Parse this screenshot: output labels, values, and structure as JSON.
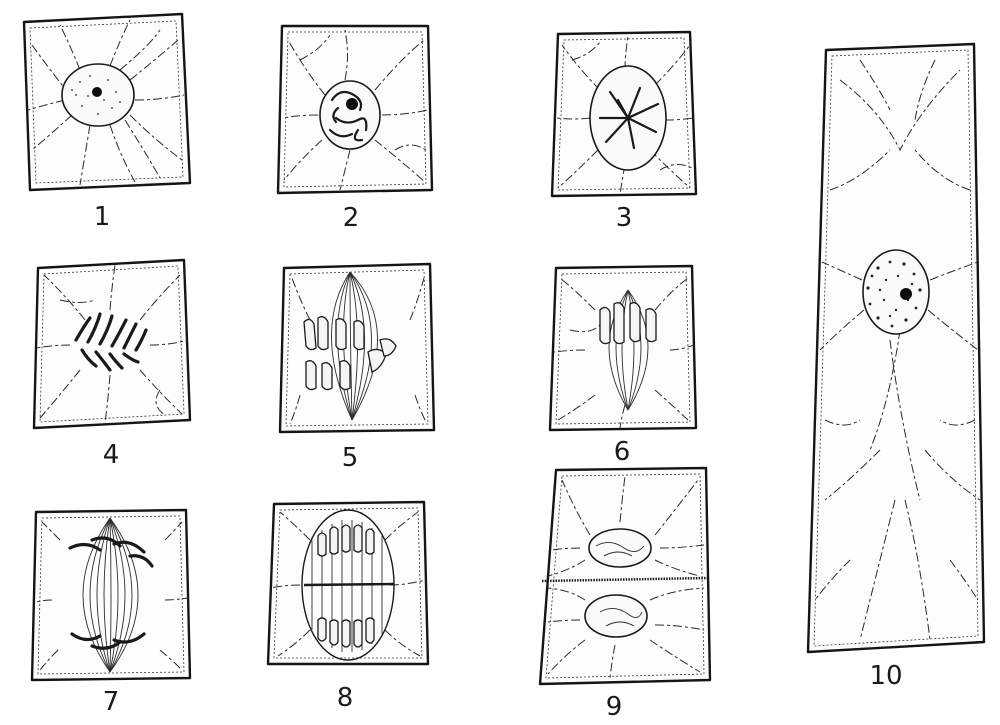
{
  "figures": [
    {
      "label": "1"
    },
    {
      "label": "2"
    },
    {
      "label": "3"
    },
    {
      "label": "4"
    },
    {
      "label": "5"
    },
    {
      "label": "6"
    },
    {
      "label": "7"
    },
    {
      "label": "8"
    },
    {
      "label": "9"
    },
    {
      "label": "10"
    }
  ]
}
